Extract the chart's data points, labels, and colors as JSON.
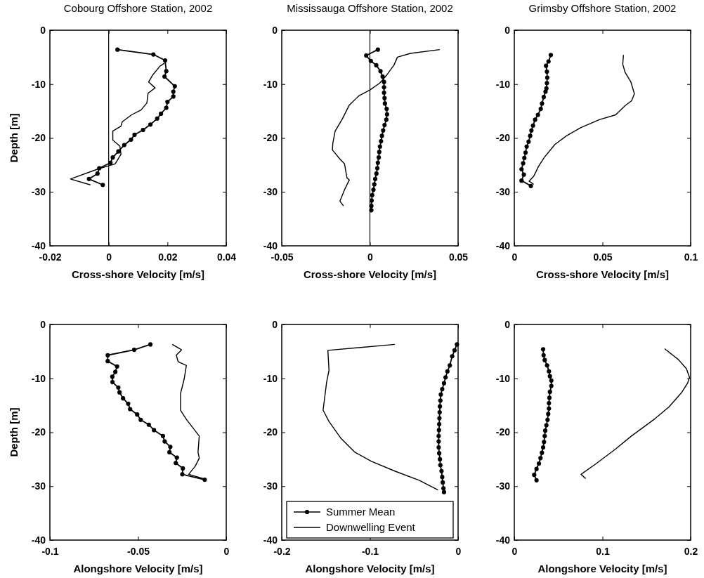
{
  "chart_data": [
    {
      "type": "line",
      "title": "Cobourg Offshore Station, 2002",
      "xlabel": "Cross-shore Velocity [m/s]",
      "ylabel": "Depth [m]",
      "xlim": [
        -0.02,
        0.04
      ],
      "xticks": [
        -0.02,
        0,
        0.02,
        0.04
      ],
      "ylim": [
        -40,
        0
      ],
      "yticks": [
        -40,
        -30,
        -20,
        -10,
        0
      ],
      "series": [
        {
          "color": "#000000",
          "marker": "circle",
          "x": [
            0.003,
            0.0152,
            0.0192,
            0.0196,
            0.019,
            0.0225,
            0.022,
            0.022,
            0.02,
            0.0196,
            0.0178,
            0.0165,
            0.0142,
            0.0117,
            0.0088,
            0.0076,
            0.0053,
            0.0033,
            0.0014,
            0.0006,
            -0.0032,
            -0.0038,
            -0.0067,
            -0.002
          ],
          "values": [
            -3.6,
            -4.5,
            -5.6,
            -7.6,
            -8.6,
            -10.4,
            -11.4,
            -12.3,
            -13.3,
            -14.4,
            -15.5,
            -16.4,
            -17.5,
            -18.5,
            -19.4,
            -20.3,
            -21.3,
            -22.5,
            -23.6,
            -24.6,
            -25.6,
            -26.6,
            -27.6,
            -28.7
          ]
        },
        {
          "color": "#000000",
          "marker": "none",
          "x": [
            0.019,
            0.0174,
            0.015,
            0.0136,
            0.0158,
            0.0134,
            0.013,
            0.011,
            0.0078,
            0.0046,
            0.0042,
            0.0014,
            0.0014,
            0.0038,
            0.0042,
            0.0022,
            -0.0034,
            -0.013,
            -0.0062
          ],
          "values": [
            -6.1,
            -6.7,
            -8.3,
            -9.6,
            -10.7,
            -11.7,
            -13.5,
            -14.8,
            -15.7,
            -17,
            -17.8,
            -18.7,
            -20.4,
            -21.5,
            -23,
            -24.8,
            -25.7,
            -27.6,
            -28.7
          ]
        }
      ],
      "ref_lines": [
        {
          "axis": "x",
          "value": 0,
          "color": "#000000"
        }
      ]
    },
    {
      "type": "line",
      "title": "Mississauga Offshore Station, 2002",
      "xlabel": "Cross-shore Velocity [m/s]",
      "xlim": [
        -0.05,
        0.05
      ],
      "xticks": [
        -0.05,
        0,
        0.05
      ],
      "ylim": [
        -40,
        0
      ],
      "yticks": [
        -40,
        -30,
        -20,
        -10,
        0
      ],
      "series": [
        {
          "color": "#000000",
          "marker": "circle",
          "x": [
            0.0045,
            -0.0021,
            0.0005,
            0.0036,
            0.006,
            0.0072,
            0.008,
            0.008,
            0.008,
            0.0083,
            0.0085,
            0.0095,
            0.0097,
            0.0093,
            0.0083,
            0.0075,
            0.0068,
            0.0063,
            0.0057,
            0.0053,
            0.005,
            0.0045,
            0.0042,
            0.0037,
            0.003,
            0.0025,
            0.002,
            0.0013,
            0.001,
            0.0008,
            0.0008
          ],
          "values": [
            -3.6,
            -4.7,
            -5.7,
            -6.5,
            -7.6,
            -8.6,
            -9.6,
            -10.6,
            -11.6,
            -12.6,
            -13.6,
            -14.6,
            -15.6,
            -16.6,
            -17.6,
            -18.6,
            -19.6,
            -20.6,
            -21.6,
            -22.6,
            -23.6,
            -24.6,
            -25.6,
            -26.6,
            -27.6,
            -28.6,
            -29.6,
            -30.6,
            -31.6,
            -32.6,
            -33.4
          ]
        },
        {
          "color": "#000000",
          "marker": "none",
          "x": [
            0.0396,
            0.023,
            0.0156,
            0.0136,
            0.0096,
            0.0056,
            0,
            -0.0064,
            -0.0117,
            -0.0157,
            -0.0197,
            -0.021,
            -0.0213,
            -0.017,
            -0.0144,
            -0.013,
            -0.0117,
            -0.0144,
            -0.017,
            -0.015
          ],
          "values": [
            -3.6,
            -4.3,
            -5,
            -6.5,
            -8.3,
            -9.8,
            -11.1,
            -12.2,
            -13.9,
            -16.5,
            -18.7,
            -20.9,
            -22.2,
            -23.9,
            -24.8,
            -27.4,
            -27.8,
            -29.6,
            -31.7,
            -32.6
          ]
        }
      ],
      "ref_lines": [
        {
          "axis": "x",
          "value": 0,
          "color": "#000000"
        }
      ]
    },
    {
      "type": "line",
      "title": "Grimsby Offshore Station, 2002",
      "xlabel": "Cross-shore Velocity [m/s]",
      "xlim": [
        0,
        0.1
      ],
      "xticks": [
        0,
        0.05,
        0.1
      ],
      "ylim": [
        -40,
        0
      ],
      "yticks": [
        -40,
        -30,
        -20,
        -10,
        0
      ],
      "series": [
        {
          "color": "#000000",
          "marker": "circle",
          "x": [
            0.0207,
            0.0194,
            0.018,
            0.0185,
            0.0187,
            0.0185,
            0.0182,
            0.0177,
            0.0167,
            0.0157,
            0.015,
            0.0134,
            0.0118,
            0.0106,
            0.0097,
            0.009,
            0.0081,
            0.007,
            0.0064,
            0.0057,
            0.005,
            0.0041,
            0.0054,
            0.0041,
            0.0094
          ],
          "values": [
            -4.6,
            -5.8,
            -6.6,
            -7.7,
            -8.8,
            -9.8,
            -10.8,
            -11.4,
            -12.4,
            -13.6,
            -14.6,
            -15.7,
            -16.6,
            -17.7,
            -18.6,
            -19.6,
            -20.7,
            -21.6,
            -22.7,
            -23.7,
            -24.7,
            -25.8,
            -26.8,
            -27.9,
            -28.9
          ]
        },
        {
          "color": "#000000",
          "marker": "none",
          "x": [
            0.0619,
            0.0615,
            0.0628,
            0.0661,
            0.0681,
            0.0665,
            0.0628,
            0.0575,
            0.0482,
            0.0376,
            0.0296,
            0.023,
            0.017,
            0.0137,
            0.011,
            0.0084,
            0.011
          ],
          "values": [
            -4.6,
            -6.3,
            -7.8,
            -9.6,
            -11.8,
            -13.1,
            -14,
            -15.7,
            -16.6,
            -18.1,
            -19.6,
            -21.2,
            -23.6,
            -25.3,
            -27.1,
            -28,
            -28.6
          ]
        }
      ]
    },
    {
      "type": "line",
      "xlabel": "Alongshore Velocity [m/s]",
      "ylabel": "Depth [m]",
      "xlim": [
        -0.1,
        0
      ],
      "xticks": [
        -0.1,
        -0.05,
        0
      ],
      "ylim": [
        -40,
        0
      ],
      "yticks": [
        -40,
        -30,
        -20,
        -10,
        0
      ],
      "series": [
        {
          "color": "#000000",
          "marker": "circle",
          "x": [
            -0.043,
            -0.0522,
            -0.0672,
            -0.0672,
            -0.0619,
            -0.0629,
            -0.0646,
            -0.0645,
            -0.0612,
            -0.0605,
            -0.0585,
            -0.0556,
            -0.0545,
            -0.0505,
            -0.0485,
            -0.0439,
            -0.041,
            -0.0359,
            -0.0349,
            -0.0317,
            -0.0322,
            -0.028,
            -0.0286,
            -0.0246,
            -0.0249,
            -0.0122
          ],
          "values": [
            -3.7,
            -4.7,
            -5.7,
            -6.8,
            -7.8,
            -8.8,
            -9.7,
            -10.7,
            -11.7,
            -12.6,
            -13.7,
            -14.7,
            -15.7,
            -16.7,
            -17.7,
            -18.6,
            -19.6,
            -20.7,
            -21.7,
            -22.7,
            -23.7,
            -24.7,
            -25.7,
            -26.7,
            -27.8,
            -28.8
          ]
        },
        {
          "color": "#000000",
          "marker": "none",
          "x": [
            -0.0306,
            -0.0253,
            -0.0283,
            -0.0273,
            -0.0226,
            -0.0239,
            -0.0259,
            -0.0259,
            -0.0226,
            -0.0153,
            -0.016,
            -0.0153,
            -0.0176,
            -0.0213,
            -0.012
          ],
          "values": [
            -3.7,
            -4.7,
            -5.7,
            -6.9,
            -7.6,
            -10.2,
            -12.8,
            -15.9,
            -17.6,
            -20.7,
            -23.7,
            -24.8,
            -26.3,
            -27.8,
            -28.7
          ]
        }
      ]
    },
    {
      "type": "line",
      "xlabel": "Alongshore Velocity [m/s]",
      "xlim": [
        -0.2,
        0
      ],
      "xticks": [
        -0.2,
        -0.1,
        0
      ],
      "ylim": [
        -40,
        0
      ],
      "yticks": [
        -40,
        -30,
        -20,
        -10,
        0
      ],
      "legend": "bottom",
      "series": [
        {
          "name": "Summer Mean",
          "color": "#000000",
          "marker": "circle",
          "x": [
            -0.0013,
            -0.004,
            -0.0067,
            -0.0094,
            -0.0121,
            -0.0142,
            -0.016,
            -0.018,
            -0.0196,
            -0.0201,
            -0.0206,
            -0.0209,
            -0.0212,
            -0.0214,
            -0.0217,
            -0.022,
            -0.022,
            -0.022,
            -0.0214,
            -0.0206,
            -0.0201,
            -0.0188,
            -0.018,
            -0.0174,
            -0.0166,
            -0.016
          ],
          "values": [
            -3.7,
            -4.8,
            -5.9,
            -7.6,
            -8.7,
            -9.8,
            -10.9,
            -12,
            -13,
            -14.1,
            -15.2,
            -16.3,
            -17.4,
            -18.5,
            -19.6,
            -20.7,
            -21.7,
            -22.8,
            -23.9,
            -25,
            -26.1,
            -27.2,
            -28.3,
            -29.3,
            -30.4,
            -31.1
          ]
        },
        {
          "name": "Downwelling Event",
          "color": "#000000",
          "marker": "none",
          "x": [
            -0.0718,
            -0.1477,
            -0.1464,
            -0.1491,
            -0.1531,
            -0.1464,
            -0.133,
            -0.117,
            -0.0983,
            -0.0718,
            -0.0442,
            -0.0228
          ],
          "values": [
            -3.7,
            -4.8,
            -8.5,
            -10.7,
            -15.9,
            -18,
            -21.1,
            -23.7,
            -25.4,
            -27.2,
            -28.9,
            -30.7
          ]
        }
      ]
    },
    {
      "type": "line",
      "xlabel": "Alongshore Velocity [m/s]",
      "xlim": [
        0,
        0.2
      ],
      "xticks": [
        0,
        0.1,
        0.2
      ],
      "ylim": [
        -40,
        0
      ],
      "yticks": [
        -40,
        -30,
        -20,
        -10,
        0
      ],
      "series": [
        {
          "color": "#000000",
          "marker": "circle",
          "x": [
            0.0327,
            0.0332,
            0.0345,
            0.0372,
            0.0393,
            0.0404,
            0.042,
            0.042,
            0.0404,
            0.0398,
            0.0393,
            0.0393,
            0.0385,
            0.0377,
            0.0364,
            0.0351,
            0.0345,
            0.0337,
            0.0327,
            0.0313,
            0.0297,
            0.0279,
            0.0252,
            0.0226,
            0.0252
          ],
          "values": [
            -4.6,
            -5.7,
            -6.6,
            -7.6,
            -8.7,
            -9.6,
            -10.4,
            -11.4,
            -12.5,
            -13.6,
            -14.6,
            -15.6,
            -16.6,
            -17.7,
            -18.7,
            -19.7,
            -20.7,
            -21.8,
            -22.8,
            -23.8,
            -24.8,
            -25.8,
            -26.8,
            -27.9,
            -28.9
          ]
        },
        {
          "color": "#000000",
          "marker": "none",
          "x": [
            0.1705,
            0.186,
            0.1952,
            0.1987,
            0.1965,
            0.1899,
            0.1753,
            0.1594,
            0.1328,
            0.1142,
            0.093,
            0.0757,
            0.081
          ],
          "values": [
            -4.5,
            -6.5,
            -8.2,
            -9.8,
            -10.9,
            -12.6,
            -15.3,
            -17.5,
            -20.7,
            -23.2,
            -25.8,
            -27.8,
            -28.6
          ]
        }
      ]
    }
  ]
}
